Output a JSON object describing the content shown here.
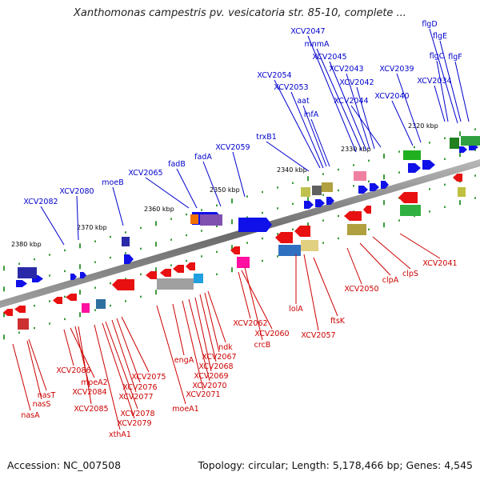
{
  "title": "Xanthomonas campestris pv. vesicatoria str. 85-10, complete ...",
  "accession": "Accession: NC_007508",
  "summary": "Topology: circular; Length: 5,178,466 bp; Genes: 4,545",
  "colors": {
    "plus_strand_label": "#0000cc",
    "minus_strand_label": "#cc0000",
    "axis": "#808080",
    "tick": "#3a9a3a"
  },
  "kbp_marks": [
    "2320 kbp",
    "2330 kbp",
    "2340 kbp",
    "2350 kbp",
    "2360 kbp",
    "2370 kbp",
    "2380 kbp"
  ],
  "plus_labels": [
    "flgD",
    "flgE",
    "flgC",
    "flgF",
    "XCV2034",
    "XCV2039",
    "XCV2040",
    "XCV2047",
    "mnmA",
    "XCV2045",
    "XCV2043",
    "XCV2042",
    "XCV2044",
    "XCV2054",
    "XCV2053",
    "aat",
    "infA",
    "trxB1",
    "XCV2059",
    "fadA",
    "fadB",
    "XCV2065",
    "moeB",
    "XCV2080",
    "XCV2082"
  ],
  "minus_labels": [
    "XCV2041",
    "clpS",
    "clpA",
    "XCV2050",
    "ftsK",
    "lolA",
    "XCV2057",
    "XCV2062",
    "XCV2060",
    "crcB",
    "ndk",
    "XCV2067",
    "XCV2068",
    "XCV2069",
    "XCV2070",
    "XCV2071",
    "engA",
    "moeA1",
    "XCV2075",
    "XCV2076",
    "XCV2077",
    "XCV2078",
    "XCV2079",
    "xthA1",
    "XCV2086",
    "moeA2",
    "XCV2084",
    "XCV2085",
    "nasT",
    "nasS",
    "nasA"
  ]
}
